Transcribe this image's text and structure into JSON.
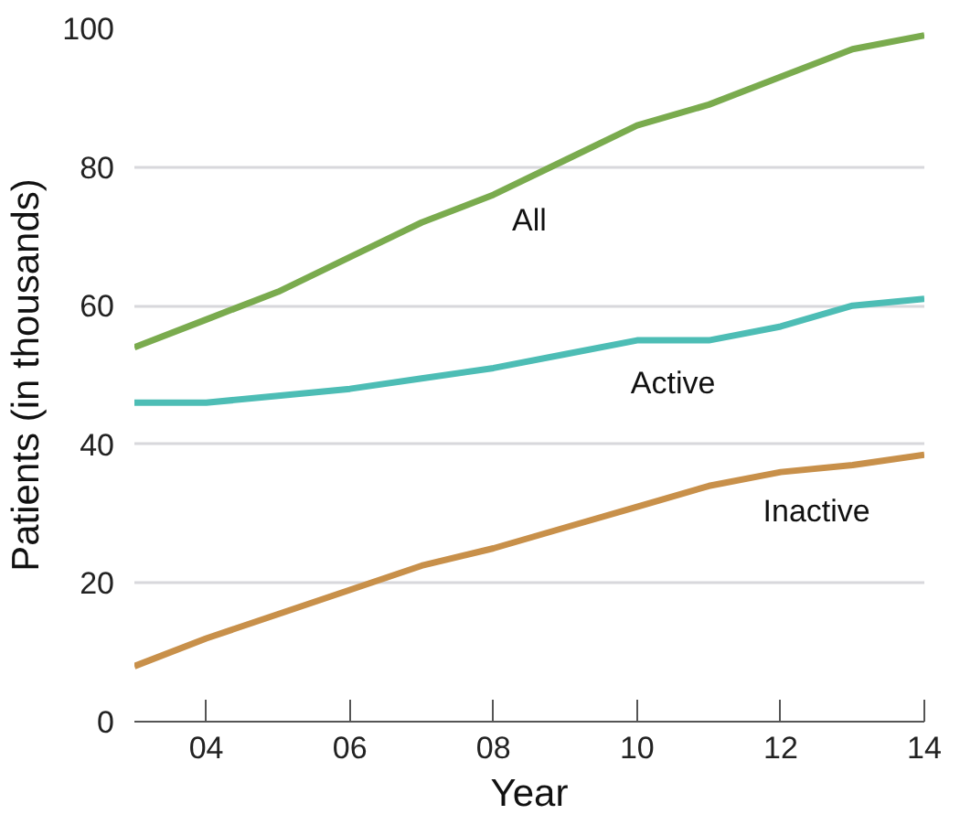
{
  "chart_data": {
    "type": "line",
    "xlabel": "Year",
    "ylabel": "Patients (in thousands)",
    "x": [
      3,
      4,
      5,
      6,
      7,
      8,
      9,
      10,
      11,
      12,
      13,
      14
    ],
    "series": [
      {
        "name": "All",
        "color": "#7aab4e",
        "values": [
          54,
          58,
          62,
          67,
          72,
          76,
          81,
          86,
          89,
          93,
          97,
          99
        ]
      },
      {
        "name": "Active",
        "color": "#4dbdb5",
        "values": [
          46,
          46,
          47,
          48,
          49.5,
          51,
          53,
          55,
          55,
          57,
          60,
          61
        ]
      },
      {
        "name": "Inactive",
        "color": "#c8904a",
        "values": [
          8,
          12,
          15.5,
          19,
          22.5,
          25,
          28,
          31,
          34,
          36,
          37,
          38.5
        ]
      }
    ],
    "xlim": [
      3,
      14
    ],
    "ylim": [
      0,
      100
    ],
    "xticks": [
      {
        "value": 4,
        "label": "04"
      },
      {
        "value": 6,
        "label": "06"
      },
      {
        "value": 8,
        "label": "08"
      },
      {
        "value": 10,
        "label": "10"
      },
      {
        "value": 12,
        "label": "12"
      },
      {
        "value": 14,
        "label": "14"
      }
    ],
    "yticks": [
      0,
      20,
      40,
      60,
      80,
      100
    ],
    "grid": "y",
    "marker": "none",
    "line_style": "solid"
  }
}
